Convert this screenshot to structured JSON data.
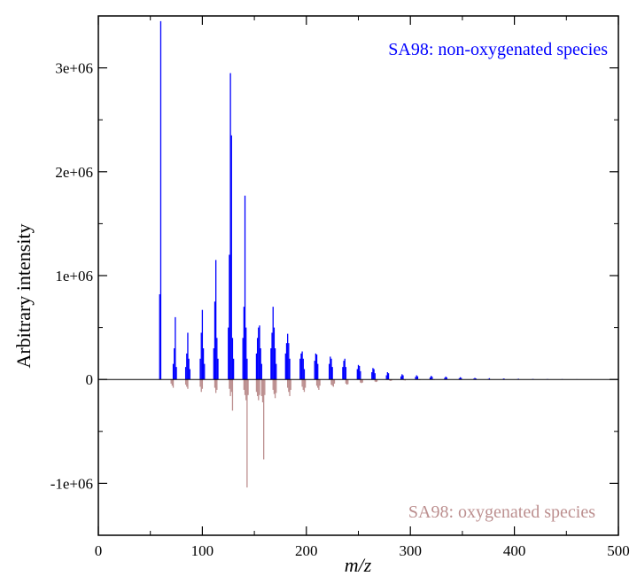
{
  "chart_data": {
    "type": "bar",
    "xlabel": "m/z",
    "ylabel": "Arbitrary intensity",
    "xlim": [
      0,
      500
    ],
    "ylim": [
      -1500000,
      3500000
    ],
    "x_ticks": [
      {
        "value": 0,
        "label": "0"
      },
      {
        "value": 100,
        "label": "100"
      },
      {
        "value": 200,
        "label": "200"
      },
      {
        "value": 300,
        "label": "300"
      },
      {
        "value": 400,
        "label": "400"
      },
      {
        "value": 500,
        "label": "500"
      }
    ],
    "y_ticks": [
      {
        "value": -1000000,
        "label": "-1e+06"
      },
      {
        "value": 0,
        "label": "0"
      },
      {
        "value": 1000000,
        "label": "1e+06"
      },
      {
        "value": 2000000,
        "label": "2e+06"
      },
      {
        "value": 3000000,
        "label": "3e+06"
      }
    ],
    "grid": false,
    "series": [
      {
        "name": "SA98: non-oxygenated species",
        "color": "#0000ff",
        "peaks": [
          [
            59,
            820000
          ],
          [
            60,
            3450000
          ],
          [
            72,
            150000
          ],
          [
            73,
            300000
          ],
          [
            74,
            600000
          ],
          [
            75,
            120000
          ],
          [
            84,
            120000
          ],
          [
            85,
            250000
          ],
          [
            86,
            450000
          ],
          [
            87,
            200000
          ],
          [
            88,
            100000
          ],
          [
            98,
            200000
          ],
          [
            99,
            450000
          ],
          [
            100,
            670000
          ],
          [
            101,
            300000
          ],
          [
            102,
            150000
          ],
          [
            111,
            300000
          ],
          [
            112,
            750000
          ],
          [
            113,
            1150000
          ],
          [
            114,
            400000
          ],
          [
            115,
            200000
          ],
          [
            125,
            500000
          ],
          [
            126,
            1200000
          ],
          [
            127,
            2950000
          ],
          [
            128,
            2350000
          ],
          [
            129,
            400000
          ],
          [
            130,
            200000
          ],
          [
            139,
            400000
          ],
          [
            140,
            700000
          ],
          [
            141,
            1770000
          ],
          [
            142,
            500000
          ],
          [
            143,
            200000
          ],
          [
            152,
            250000
          ],
          [
            153,
            400000
          ],
          [
            154,
            500000
          ],
          [
            155,
            520000
          ],
          [
            156,
            300000
          ],
          [
            157,
            150000
          ],
          [
            166,
            300000
          ],
          [
            167,
            450000
          ],
          [
            168,
            700000
          ],
          [
            169,
            500000
          ],
          [
            170,
            300000
          ],
          [
            171,
            150000
          ],
          [
            180,
            250000
          ],
          [
            181,
            350000
          ],
          [
            182,
            440000
          ],
          [
            183,
            350000
          ],
          [
            184,
            200000
          ],
          [
            194,
            200000
          ],
          [
            195,
            250000
          ],
          [
            196,
            270000
          ],
          [
            197,
            200000
          ],
          [
            198,
            100000
          ],
          [
            208,
            180000
          ],
          [
            209,
            250000
          ],
          [
            210,
            240000
          ],
          [
            211,
            150000
          ],
          [
            222,
            150000
          ],
          [
            223,
            220000
          ],
          [
            224,
            200000
          ],
          [
            225,
            120000
          ],
          [
            235,
            120000
          ],
          [
            236,
            180000
          ],
          [
            237,
            200000
          ],
          [
            238,
            120000
          ],
          [
            249,
            100000
          ],
          [
            250,
            140000
          ],
          [
            251,
            130000
          ],
          [
            252,
            80000
          ],
          [
            263,
            70000
          ],
          [
            264,
            110000
          ],
          [
            265,
            100000
          ],
          [
            266,
            60000
          ],
          [
            277,
            40000
          ],
          [
            278,
            70000
          ],
          [
            279,
            60000
          ],
          [
            291,
            30000
          ],
          [
            292,
            50000
          ],
          [
            293,
            40000
          ],
          [
            305,
            25000
          ],
          [
            306,
            40000
          ],
          [
            307,
            30000
          ],
          [
            319,
            20000
          ],
          [
            320,
            35000
          ],
          [
            321,
            25000
          ],
          [
            333,
            15000
          ],
          [
            334,
            28000
          ],
          [
            335,
            20000
          ],
          [
            347,
            12000
          ],
          [
            348,
            22000
          ],
          [
            349,
            15000
          ],
          [
            361,
            8000
          ],
          [
            362,
            15000
          ],
          [
            363,
            10000
          ],
          [
            375,
            6000
          ],
          [
            376,
            12000
          ],
          [
            389,
            5000
          ],
          [
            390,
            10000
          ],
          [
            403,
            4000
          ],
          [
            404,
            7000
          ],
          [
            417,
            3000
          ],
          [
            418,
            5000
          ],
          [
            431,
            2500
          ],
          [
            432,
            4000
          ],
          [
            445,
            2000
          ],
          [
            446,
            3500
          ],
          [
            459,
            1500
          ],
          [
            460,
            2500
          ],
          [
            473,
            1000
          ],
          [
            474,
            2000
          ]
        ]
      },
      {
        "name": "SA98: oxygenated species",
        "color": "#bc8f8f",
        "peaks": [
          [
            70,
            -40000
          ],
          [
            71,
            -60000
          ],
          [
            72,
            -80000
          ],
          [
            84,
            -50000
          ],
          [
            85,
            -70000
          ],
          [
            86,
            -90000
          ],
          [
            98,
            -70000
          ],
          [
            99,
            -120000
          ],
          [
            100,
            -90000
          ],
          [
            112,
            -80000
          ],
          [
            113,
            -130000
          ],
          [
            114,
            -100000
          ],
          [
            126,
            -90000
          ],
          [
            127,
            -160000
          ],
          [
            128,
            -120000
          ],
          [
            129,
            -300000
          ],
          [
            140,
            -100000
          ],
          [
            141,
            -150000
          ],
          [
            142,
            -200000
          ],
          [
            143,
            -1040000
          ],
          [
            144,
            -150000
          ],
          [
            152,
            -120000
          ],
          [
            153,
            -160000
          ],
          [
            154,
            -200000
          ],
          [
            155,
            -150000
          ],
          [
            157,
            -160000
          ],
          [
            158,
            -220000
          ],
          [
            159,
            -770000
          ],
          [
            160,
            -150000
          ],
          [
            168,
            -100000
          ],
          [
            169,
            -140000
          ],
          [
            170,
            -180000
          ],
          [
            171,
            -130000
          ],
          [
            182,
            -80000
          ],
          [
            183,
            -120000
          ],
          [
            184,
            -160000
          ],
          [
            185,
            -100000
          ],
          [
            196,
            -70000
          ],
          [
            197,
            -100000
          ],
          [
            198,
            -120000
          ],
          [
            199,
            -80000
          ],
          [
            210,
            -60000
          ],
          [
            211,
            -80000
          ],
          [
            212,
            -100000
          ],
          [
            213,
            -60000
          ],
          [
            224,
            -50000
          ],
          [
            225,
            -60000
          ],
          [
            226,
            -70000
          ],
          [
            227,
            -40000
          ],
          [
            238,
            -40000
          ],
          [
            239,
            -50000
          ],
          [
            240,
            -45000
          ],
          [
            252,
            -30000
          ],
          [
            253,
            -35000
          ],
          [
            254,
            -30000
          ],
          [
            266,
            -20000
          ],
          [
            267,
            -25000
          ],
          [
            268,
            -20000
          ],
          [
            280,
            -10000
          ],
          [
            281,
            -15000
          ],
          [
            282,
            -10000
          ],
          [
            294,
            -8000
          ],
          [
            295,
            -10000
          ],
          [
            308,
            -5000
          ],
          [
            309,
            -7000
          ],
          [
            322,
            -4000
          ],
          [
            323,
            -5000
          ],
          [
            336,
            -3000
          ],
          [
            337,
            -4000
          ]
        ]
      }
    ]
  }
}
